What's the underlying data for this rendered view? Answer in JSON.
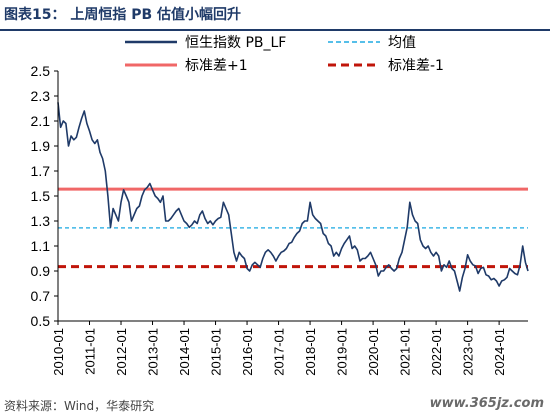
{
  "header": {
    "title": "图表15：  上周恒指 PB 估值小幅回升"
  },
  "footer": {
    "source": "资料来源：Wind，华泰研究",
    "watermark": "www.365jz.com"
  },
  "colors": {
    "title": "#1f3a68",
    "pb_line": "#1f3a68",
    "mean": "#3fb6e6",
    "plus1": "#f06767",
    "minus1": "#c0150a",
    "axis": "#000000"
  },
  "chart_data": {
    "type": "line",
    "title": "",
    "xlabel": "",
    "ylabel": "",
    "ylim": [
      0.5,
      2.5
    ],
    "yticks": [
      "2.5",
      "2.3",
      "2.1",
      "1.9",
      "1.7",
      "1.5",
      "1.3",
      "1.1",
      "0.9",
      "0.7",
      "0.5"
    ],
    "xlim": [
      "2010-01",
      "2024-12"
    ],
    "xticks": [
      "2010-01",
      "2011-01",
      "2012-01",
      "2013-01",
      "2014-01",
      "2015-01",
      "2016-01",
      "2017-01",
      "2018-01",
      "2019-01",
      "2020-01",
      "2021-01",
      "2022-01",
      "2023-01",
      "2024-01"
    ],
    "legend": {
      "placement": "top",
      "entries": [
        {
          "label": "恒生指数 PB_LF",
          "key": "pb_line",
          "style": "solid"
        },
        {
          "label": "均值",
          "key": "mean",
          "style": "dashed"
        },
        {
          "label": "标准差+1",
          "key": "plus1",
          "style": "solid"
        },
        {
          "label": "标准差-1",
          "key": "minus1",
          "style": "dashed"
        }
      ]
    },
    "reference_lines": [
      {
        "name": "均值",
        "value": 1.245,
        "key": "mean",
        "style": "dashed"
      },
      {
        "name": "标准差+1",
        "value": 1.555,
        "key": "plus1",
        "style": "solid"
      },
      {
        "name": "标准差-1",
        "value": 0.935,
        "key": "minus1",
        "style": "dashed"
      }
    ],
    "series": [
      {
        "name": "恒生指数 PB_LF",
        "key": "pb_line",
        "points": [
          [
            "2010-01",
            2.25
          ],
          [
            "2010-02",
            2.05
          ],
          [
            "2010-03",
            2.1
          ],
          [
            "2010-04",
            2.08
          ],
          [
            "2010-05",
            1.9
          ],
          [
            "2010-06",
            1.98
          ],
          [
            "2010-07",
            1.95
          ],
          [
            "2010-08",
            1.97
          ],
          [
            "2010-09",
            2.05
          ],
          [
            "2010-10",
            2.12
          ],
          [
            "2010-11",
            2.18
          ],
          [
            "2010-12",
            2.08
          ],
          [
            "2011-01",
            2.02
          ],
          [
            "2011-02",
            1.95
          ],
          [
            "2011-03",
            1.92
          ],
          [
            "2011-04",
            1.95
          ],
          [
            "2011-05",
            1.85
          ],
          [
            "2011-06",
            1.8
          ],
          [
            "2011-07",
            1.7
          ],
          [
            "2011-08",
            1.5
          ],
          [
            "2011-09",
            1.25
          ],
          [
            "2011-10",
            1.4
          ],
          [
            "2011-11",
            1.35
          ],
          [
            "2011-12",
            1.3
          ],
          [
            "2012-01",
            1.45
          ],
          [
            "2012-02",
            1.55
          ],
          [
            "2012-03",
            1.5
          ],
          [
            "2012-04",
            1.45
          ],
          [
            "2012-05",
            1.3
          ],
          [
            "2012-06",
            1.35
          ],
          [
            "2012-07",
            1.4
          ],
          [
            "2012-08",
            1.42
          ],
          [
            "2012-09",
            1.5
          ],
          [
            "2012-10",
            1.55
          ],
          [
            "2012-11",
            1.57
          ],
          [
            "2012-12",
            1.6
          ],
          [
            "2013-01",
            1.55
          ],
          [
            "2013-02",
            1.5
          ],
          [
            "2013-03",
            1.48
          ],
          [
            "2013-04",
            1.45
          ],
          [
            "2013-05",
            1.5
          ],
          [
            "2013-06",
            1.3
          ],
          [
            "2013-07",
            1.3
          ],
          [
            "2013-08",
            1.32
          ],
          [
            "2013-09",
            1.35
          ],
          [
            "2013-10",
            1.38
          ],
          [
            "2013-11",
            1.4
          ],
          [
            "2013-12",
            1.35
          ],
          [
            "2014-01",
            1.3
          ],
          [
            "2014-02",
            1.28
          ],
          [
            "2014-03",
            1.25
          ],
          [
            "2014-04",
            1.27
          ],
          [
            "2014-05",
            1.3
          ],
          [
            "2014-06",
            1.28
          ],
          [
            "2014-07",
            1.35
          ],
          [
            "2014-08",
            1.38
          ],
          [
            "2014-09",
            1.32
          ],
          [
            "2014-10",
            1.28
          ],
          [
            "2014-11",
            1.3
          ],
          [
            "2014-12",
            1.27
          ],
          [
            "2015-01",
            1.3
          ],
          [
            "2015-02",
            1.32
          ],
          [
            "2015-03",
            1.33
          ],
          [
            "2015-04",
            1.45
          ],
          [
            "2015-05",
            1.4
          ],
          [
            "2015-06",
            1.35
          ],
          [
            "2015-07",
            1.2
          ],
          [
            "2015-08",
            1.05
          ],
          [
            "2015-09",
            0.98
          ],
          [
            "2015-10",
            1.05
          ],
          [
            "2015-11",
            1.02
          ],
          [
            "2015-12",
            1.0
          ],
          [
            "2016-01",
            0.92
          ],
          [
            "2016-02",
            0.9
          ],
          [
            "2016-03",
            0.95
          ],
          [
            "2016-04",
            0.97
          ],
          [
            "2016-05",
            0.95
          ],
          [
            "2016-06",
            0.93
          ],
          [
            "2016-07",
            1.0
          ],
          [
            "2016-08",
            1.05
          ],
          [
            "2016-09",
            1.07
          ],
          [
            "2016-10",
            1.05
          ],
          [
            "2016-11",
            1.02
          ],
          [
            "2016-12",
            0.98
          ],
          [
            "2017-01",
            1.02
          ],
          [
            "2017-02",
            1.05
          ],
          [
            "2017-03",
            1.06
          ],
          [
            "2017-04",
            1.08
          ],
          [
            "2017-05",
            1.12
          ],
          [
            "2017-06",
            1.13
          ],
          [
            "2017-07",
            1.17
          ],
          [
            "2017-08",
            1.2
          ],
          [
            "2017-09",
            1.22
          ],
          [
            "2017-10",
            1.28
          ],
          [
            "2017-11",
            1.3
          ],
          [
            "2017-12",
            1.3
          ],
          [
            "2018-01",
            1.45
          ],
          [
            "2018-02",
            1.35
          ],
          [
            "2018-03",
            1.32
          ],
          [
            "2018-04",
            1.3
          ],
          [
            "2018-05",
            1.28
          ],
          [
            "2018-06",
            1.2
          ],
          [
            "2018-07",
            1.18
          ],
          [
            "2018-08",
            1.12
          ],
          [
            "2018-09",
            1.1
          ],
          [
            "2018-10",
            1.02
          ],
          [
            "2018-11",
            1.05
          ],
          [
            "2018-12",
            1.02
          ],
          [
            "2019-01",
            1.08
          ],
          [
            "2019-02",
            1.12
          ],
          [
            "2019-03",
            1.15
          ],
          [
            "2019-04",
            1.18
          ],
          [
            "2019-05",
            1.08
          ],
          [
            "2019-06",
            1.1
          ],
          [
            "2019-07",
            1.07
          ],
          [
            "2019-08",
            0.98
          ],
          [
            "2019-09",
            1.0
          ],
          [
            "2019-10",
            1.0
          ],
          [
            "2019-11",
            1.02
          ],
          [
            "2019-12",
            1.05
          ],
          [
            "2020-01",
            1.0
          ],
          [
            "2020-02",
            0.95
          ],
          [
            "2020-03",
            0.86
          ],
          [
            "2020-04",
            0.9
          ],
          [
            "2020-05",
            0.9
          ],
          [
            "2020-06",
            0.93
          ],
          [
            "2020-07",
            0.95
          ],
          [
            "2020-08",
            0.92
          ],
          [
            "2020-09",
            0.9
          ],
          [
            "2020-10",
            0.92
          ],
          [
            "2020-11",
            1.0
          ],
          [
            "2020-12",
            1.05
          ],
          [
            "2021-01",
            1.15
          ],
          [
            "2021-02",
            1.25
          ],
          [
            "2021-03",
            1.45
          ],
          [
            "2021-04",
            1.35
          ],
          [
            "2021-05",
            1.3
          ],
          [
            "2021-06",
            1.28
          ],
          [
            "2021-07",
            1.15
          ],
          [
            "2021-08",
            1.1
          ],
          [
            "2021-09",
            1.08
          ],
          [
            "2021-10",
            1.1
          ],
          [
            "2021-11",
            1.05
          ],
          [
            "2021-12",
            1.02
          ],
          [
            "2022-01",
            1.05
          ],
          [
            "2022-02",
            1.02
          ],
          [
            "2022-03",
            0.9
          ],
          [
            "2022-04",
            0.95
          ],
          [
            "2022-05",
            0.93
          ],
          [
            "2022-06",
            0.98
          ],
          [
            "2022-07",
            0.92
          ],
          [
            "2022-08",
            0.9
          ],
          [
            "2022-09",
            0.82
          ],
          [
            "2022-10",
            0.74
          ],
          [
            "2022-11",
            0.85
          ],
          [
            "2022-12",
            0.92
          ],
          [
            "2023-01",
            1.03
          ],
          [
            "2023-02",
            0.98
          ],
          [
            "2023-03",
            0.95
          ],
          [
            "2023-04",
            0.94
          ],
          [
            "2023-05",
            0.88
          ],
          [
            "2023-06",
            0.92
          ],
          [
            "2023-07",
            0.93
          ],
          [
            "2023-08",
            0.87
          ],
          [
            "2023-09",
            0.86
          ],
          [
            "2023-10",
            0.83
          ],
          [
            "2023-11",
            0.84
          ],
          [
            "2023-12",
            0.82
          ],
          [
            "2024-01",
            0.78
          ],
          [
            "2024-02",
            0.82
          ],
          [
            "2024-03",
            0.83
          ],
          [
            "2024-04",
            0.85
          ],
          [
            "2024-05",
            0.92
          ],
          [
            "2024-06",
            0.9
          ],
          [
            "2024-07",
            0.88
          ],
          [
            "2024-08",
            0.87
          ],
          [
            "2024-09",
            0.95
          ],
          [
            "2024-10",
            1.1
          ],
          [
            "2024-11",
            0.97
          ],
          [
            "2024-12",
            0.9
          ]
        ]
      }
    ]
  }
}
